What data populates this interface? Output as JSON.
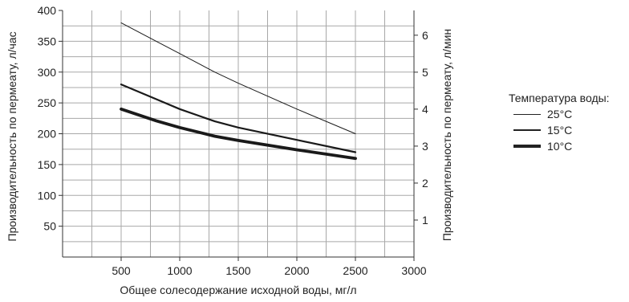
{
  "chart_data": {
    "type": "line",
    "xlabel": "Общее солесодержание исходной воды, мг/л",
    "ylabel_left": "Производительность по пермеату, л/час",
    "ylabel_right": "Производительность по пермеату, л/мин",
    "x_ticks": [
      "500",
      "1000",
      "1500",
      "2000",
      "2500",
      "3000"
    ],
    "y_left_ticks": [
      "50",
      "100",
      "150",
      "200",
      "250",
      "300",
      "350",
      "400"
    ],
    "y_right_ticks": [
      "1",
      "2",
      "3",
      "4",
      "5",
      "6"
    ],
    "xlim": [
      0,
      3000
    ],
    "ylim_left": [
      0,
      400
    ],
    "ylim_right": [
      0,
      6.67
    ],
    "grid": true,
    "legend_position": "right",
    "legend_title": "Температура воды:",
    "series": [
      {
        "name": "25°C",
        "weight": "thin",
        "x": [
          500,
          800,
          1000,
          1300,
          1500,
          2000,
          2500
        ],
        "values": [
          380,
          350,
          330,
          300,
          282,
          240,
          200
        ]
      },
      {
        "name": "15°C",
        "weight": "medium",
        "x": [
          500,
          800,
          1000,
          1300,
          1500,
          2000,
          2500
        ],
        "values": [
          280,
          256,
          240,
          220,
          210,
          190,
          170
        ]
      },
      {
        "name": "10°C",
        "weight": "thick",
        "x": [
          500,
          800,
          1000,
          1300,
          1500,
          2000,
          2500
        ],
        "values": [
          240,
          221,
          210,
          196,
          189,
          174,
          160
        ]
      }
    ]
  }
}
